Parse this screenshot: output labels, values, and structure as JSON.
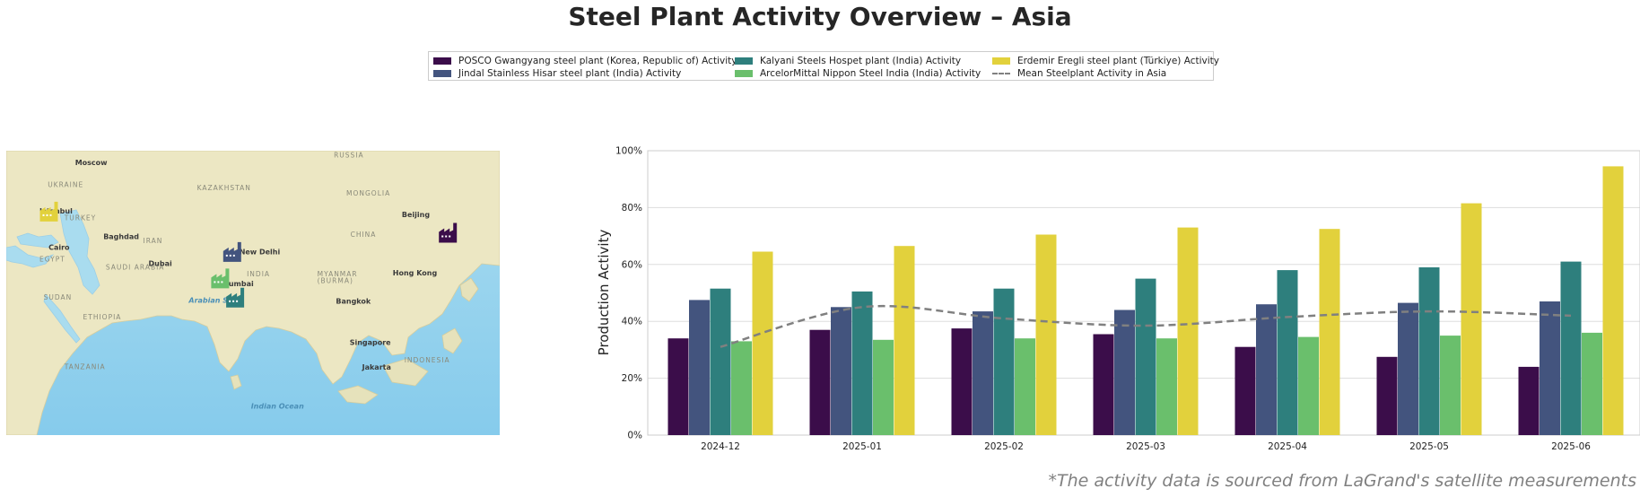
{
  "title": "Steel Plant Activity Overview – Asia",
  "footnote": "*The activity data is sourced from LaGrand's satellite measurements",
  "legend": {
    "items": [
      {
        "label": "POSCO Gwangyang steel plant (Korea, Republic of) Activity",
        "color": "#3b0d4a",
        "kind": "bar"
      },
      {
        "label": "Jindal Stainless Hisar steel plant (India) Activity",
        "color": "#43547e",
        "kind": "bar"
      },
      {
        "label": "Kalyani Steels Hospet plant (India) Activity",
        "color": "#2e7f7d",
        "kind": "bar"
      },
      {
        "label": "ArcelorMittal Nippon Steel India (India) Activity",
        "color": "#6abf6c",
        "kind": "bar"
      },
      {
        "label": "Erdemir Eregli steel plant (Türkiye) Activity",
        "color": "#e2d13c",
        "kind": "bar"
      },
      {
        "label": "Mean Steelplant Activity in Asia",
        "color": "#808080",
        "kind": "dashed-line"
      }
    ]
  },
  "map": {
    "labels": [
      {
        "text": "RUSSIA",
        "lon": 100,
        "lat": 58
      },
      {
        "text": "Moscow",
        "lon": 37.6,
        "lat": 55.7
      },
      {
        "text": "UKRAINE",
        "lon": 31,
        "lat": 49
      },
      {
        "text": "KAZAKHSTAN",
        "lon": 67,
        "lat": 48
      },
      {
        "text": "MONGOLIA",
        "lon": 103,
        "lat": 46.5
      },
      {
        "text": "Beijing",
        "lon": 116.4,
        "lat": 39.9
      },
      {
        "text": "Istanbul",
        "lon": 29,
        "lat": 41
      },
      {
        "text": "TURKEY",
        "lon": 35,
        "lat": 39
      },
      {
        "text": "Baghdad",
        "lon": 44.4,
        "lat": 33.3
      },
      {
        "text": "IRAN",
        "lon": 54,
        "lat": 32
      },
      {
        "text": "CHINA",
        "lon": 104,
        "lat": 34
      },
      {
        "text": "Cairo",
        "lon": 31.2,
        "lat": 30
      },
      {
        "text": "New Delhi",
        "lon": 77.2,
        "lat": 28.6
      },
      {
        "text": "EGYPT",
        "lon": 29,
        "lat": 26.5
      },
      {
        "text": "SAUDI ARABIA",
        "lon": 45,
        "lat": 24
      },
      {
        "text": "Dubai",
        "lon": 55.3,
        "lat": 25.2
      },
      {
        "text": "INDIA",
        "lon": 79,
        "lat": 22
      },
      {
        "text": "MYANMAR",
        "lon": 96,
        "lat": 22
      },
      {
        "text": "(BURMA)",
        "lon": 96,
        "lat": 20
      },
      {
        "text": "Hong Kong",
        "lon": 114.2,
        "lat": 22.3
      },
      {
        "text": "Mumbai",
        "lon": 72.9,
        "lat": 19
      },
      {
        "text": "SUDAN",
        "lon": 30,
        "lat": 15
      },
      {
        "text": "Arabian Sea",
        "lon": 65,
        "lat": 14
      },
      {
        "text": "Bangkok",
        "lon": 100.5,
        "lat": 13.8
      },
      {
        "text": "ETHIOPIA",
        "lon": 39.5,
        "lat": 9
      },
      {
        "text": "Singapore",
        "lon": 103.8,
        "lat": 1.3
      },
      {
        "text": "TANZANIA",
        "lon": 35,
        "lat": -6
      },
      {
        "text": "Jakarta",
        "lon": 106.8,
        "lat": -6.2
      },
      {
        "text": "INDONESIA",
        "lon": 117,
        "lat": -4
      },
      {
        "text": "Indian Ocean",
        "lon": 80,
        "lat": -18
      }
    ],
    "plants": [
      {
        "name": "POSCO Gwangyang",
        "lon": 127.7,
        "lat": 34.9,
        "color": "#3b0d4a"
      },
      {
        "name": "Jindal Stainless Hisar",
        "lon": 75.7,
        "lat": 29.1,
        "color": "#43547e"
      },
      {
        "name": "Kalyani Steels Hospet",
        "lon": 76.4,
        "lat": 15.3,
        "color": "#2e7f7d"
      },
      {
        "name": "ArcelorMittal Nippon Steel India",
        "lon": 72.8,
        "lat": 21.1,
        "color": "#6abf6c"
      },
      {
        "name": "Erdemir Eregli",
        "lon": 31.5,
        "lat": 41.3,
        "color": "#e2d13c"
      }
    ]
  },
  "chart_data": {
    "type": "bar",
    "title": "",
    "xlabel": "",
    "ylabel": "Production Activity",
    "categories": [
      "2024-12",
      "2025-01",
      "2025-02",
      "2025-03",
      "2025-04",
      "2025-05",
      "2025-06"
    ],
    "ylim": [
      0,
      100
    ],
    "yticks": [
      "0%",
      "20%",
      "40%",
      "60%",
      "80%",
      "100%"
    ],
    "grid": true,
    "legend_position": "top-center",
    "series": [
      {
        "name": "POSCO Gwangyang steel plant (Korea, Republic of) Activity",
        "color": "#3b0d4a",
        "values": [
          34,
          37,
          37.5,
          35.5,
          31,
          27.5,
          24
        ]
      },
      {
        "name": "Jindal Stainless Hisar steel plant (India) Activity",
        "color": "#43547e",
        "values": [
          47.5,
          45,
          43.5,
          44,
          46,
          46.5,
          47
        ]
      },
      {
        "name": "Kalyani Steels Hospet plant (India) Activity",
        "color": "#2e7f7d",
        "values": [
          51.5,
          50.5,
          51.5,
          55,
          58,
          59,
          61
        ]
      },
      {
        "name": "ArcelorMittal Nippon Steel India (India) Activity",
        "color": "#6abf6c",
        "values": [
          33,
          33.5,
          34,
          34,
          34.5,
          35,
          36
        ]
      },
      {
        "name": "Erdemir Eregli steel plant (Türkiye) Activity",
        "color": "#e2d13c",
        "values": [
          64.5,
          66.5,
          70.5,
          73,
          72.5,
          81.5,
          94.5
        ]
      }
    ],
    "mean_line": {
      "name": "Mean Steelplant Activity in Asia",
      "color": "#808080",
      "values": [
        31,
        45,
        41,
        38.5,
        41.5,
        43.5,
        42
      ]
    }
  }
}
